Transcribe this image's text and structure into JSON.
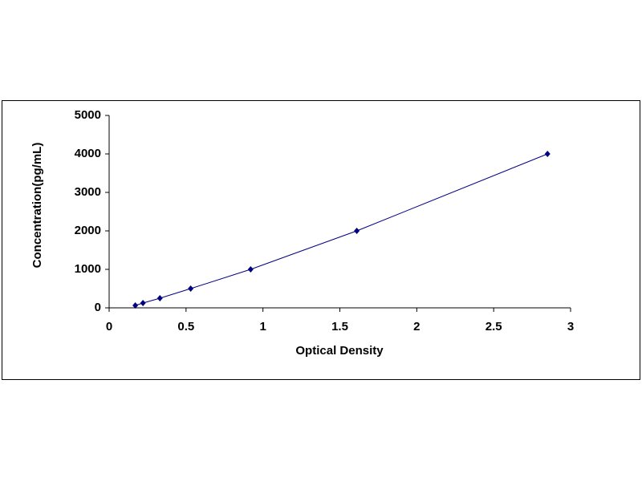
{
  "chart_data": {
    "type": "scatter",
    "x_label": "Optical Density",
    "y_label": "Concentration(pg/mL)",
    "series": [
      {
        "color": "#000080",
        "x": [
          0.17,
          0.22,
          0.33,
          0.53,
          0.92,
          1.61,
          2.85
        ],
        "values": [
          62.5,
          125,
          250,
          500,
          1000,
          2000,
          4000
        ]
      }
    ],
    "xlim": [
      0,
      3
    ],
    "xticks": [
      0,
      0.5,
      1,
      1.5,
      2,
      2.5,
      3
    ],
    "ylim": [
      0,
      5000
    ],
    "yticks": [
      0,
      1000,
      2000,
      3000,
      4000,
      5000
    ],
    "grid": false,
    "trend_line": true
  }
}
